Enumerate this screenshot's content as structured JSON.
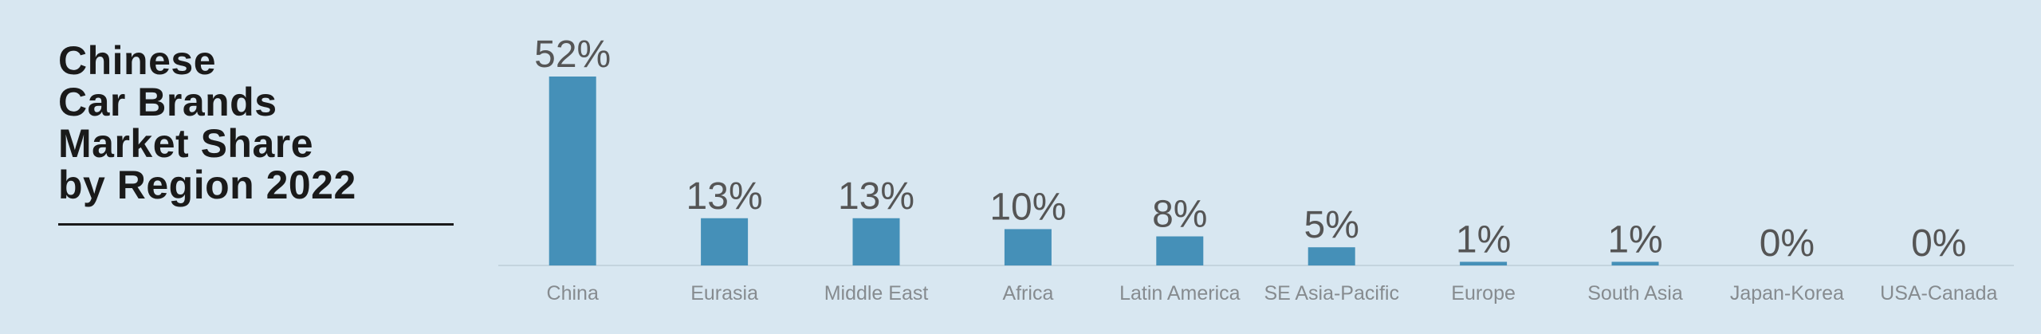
{
  "chart_data": {
    "type": "bar",
    "title": "Chinese\nCar Brands\nMarket Share\nby Region 2022",
    "categories": [
      "China",
      "Eurasia",
      "Middle East",
      "Africa",
      "Latin America",
      "SE Asia-Pacific",
      "Europe",
      "South Asia",
      "Japan-Korea",
      "USA-Canada"
    ],
    "values": [
      52,
      13,
      13,
      10,
      8,
      5,
      1,
      1,
      0,
      0
    ],
    "value_labels": [
      "52%",
      "13%",
      "13%",
      "10%",
      "8%",
      "5%",
      "1%",
      "1%",
      "0%",
      "0%"
    ],
    "color": "#4590b8"
  }
}
